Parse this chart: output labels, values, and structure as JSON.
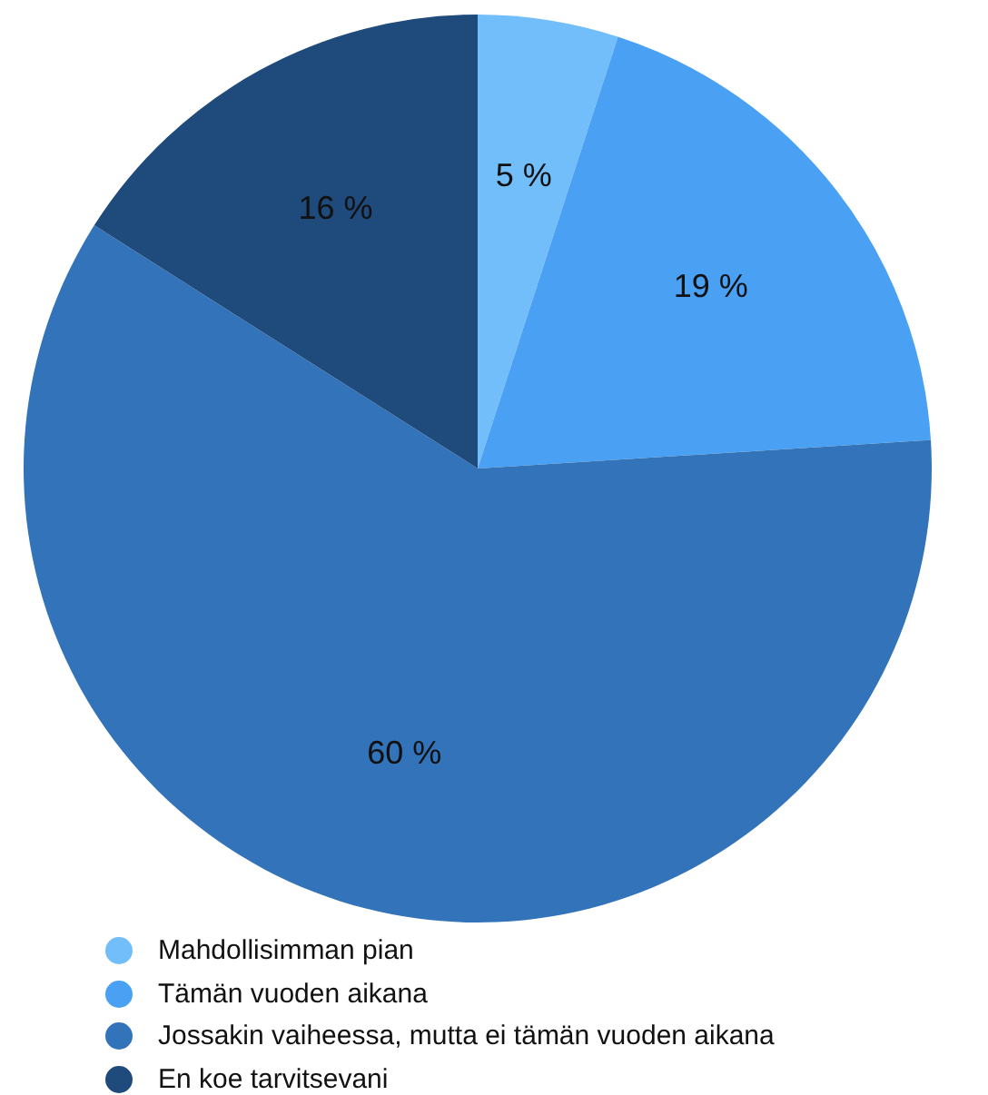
{
  "chart_data": {
    "type": "pie",
    "categories": [
      "Mahdollisimman pian",
      "Tämän vuoden aikana",
      "Jossakin vaiheessa, mutta ei tämän vuoden aikana",
      "En koe tarvitsevani"
    ],
    "values": [
      5,
      19,
      60,
      16
    ],
    "colors": [
      "#71befb",
      "#4aa0f2",
      "#3373b9",
      "#1f4a7c"
    ],
    "value_labels": [
      "5 %",
      "19 %",
      "60 %",
      "16 %"
    ],
    "legend": "bottom left"
  }
}
